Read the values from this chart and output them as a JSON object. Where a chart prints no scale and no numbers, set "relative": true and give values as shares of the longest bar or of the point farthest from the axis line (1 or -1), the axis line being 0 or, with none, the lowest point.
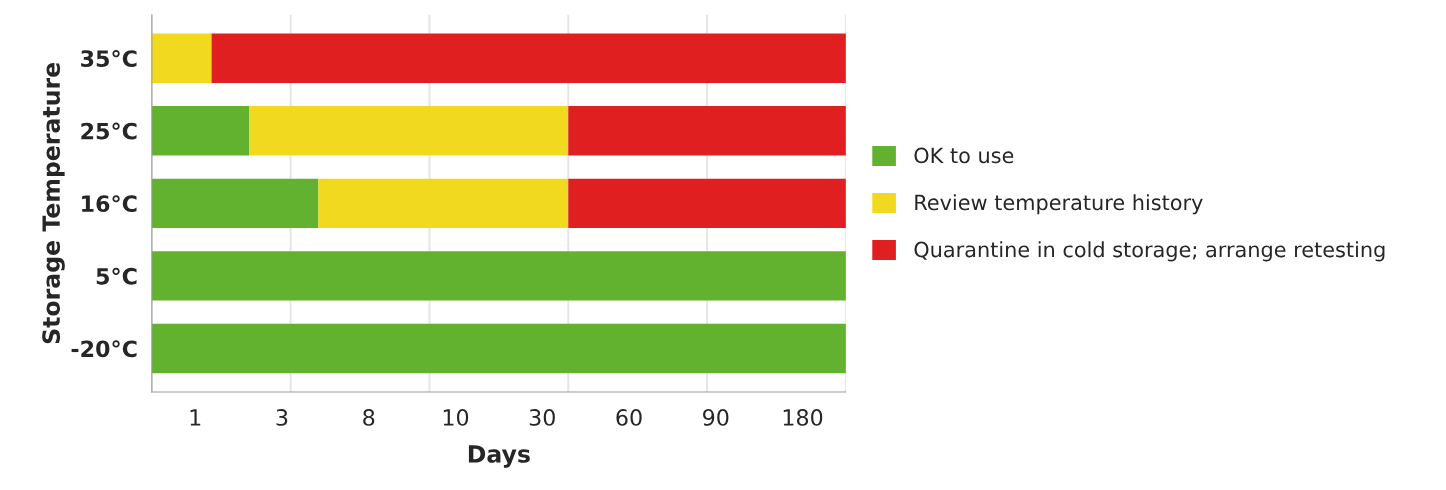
{
  "chart_data": {
    "type": "bar",
    "orientation": "horizontal",
    "stacked": true,
    "relative": true,
    "xlabel": "Days",
    "ylabel": "Storage Temperature",
    "categories": [
      "35°C",
      "25°C",
      "16°C",
      "5°C",
      "-20°C"
    ],
    "series": [
      {
        "name": "OK to use",
        "color": "#62b22f",
        "values": [
          0,
          0.14,
          0.24,
          1,
          1
        ]
      },
      {
        "name": "Review temperature history",
        "color": "#f0d91e",
        "values": [
          0.086,
          0.46,
          0.36,
          0,
          0
        ]
      },
      {
        "name": "Quarantine in cold storage; arrange retesting",
        "color": "#e02020",
        "values": [
          0.914,
          0.4,
          0.4,
          0,
          0
        ]
      }
    ],
    "annotations": [
      "1",
      "3",
      "8",
      "10",
      "30",
      "60",
      "90",
      "180"
    ],
    "grid": "x",
    "legend": "right"
  }
}
